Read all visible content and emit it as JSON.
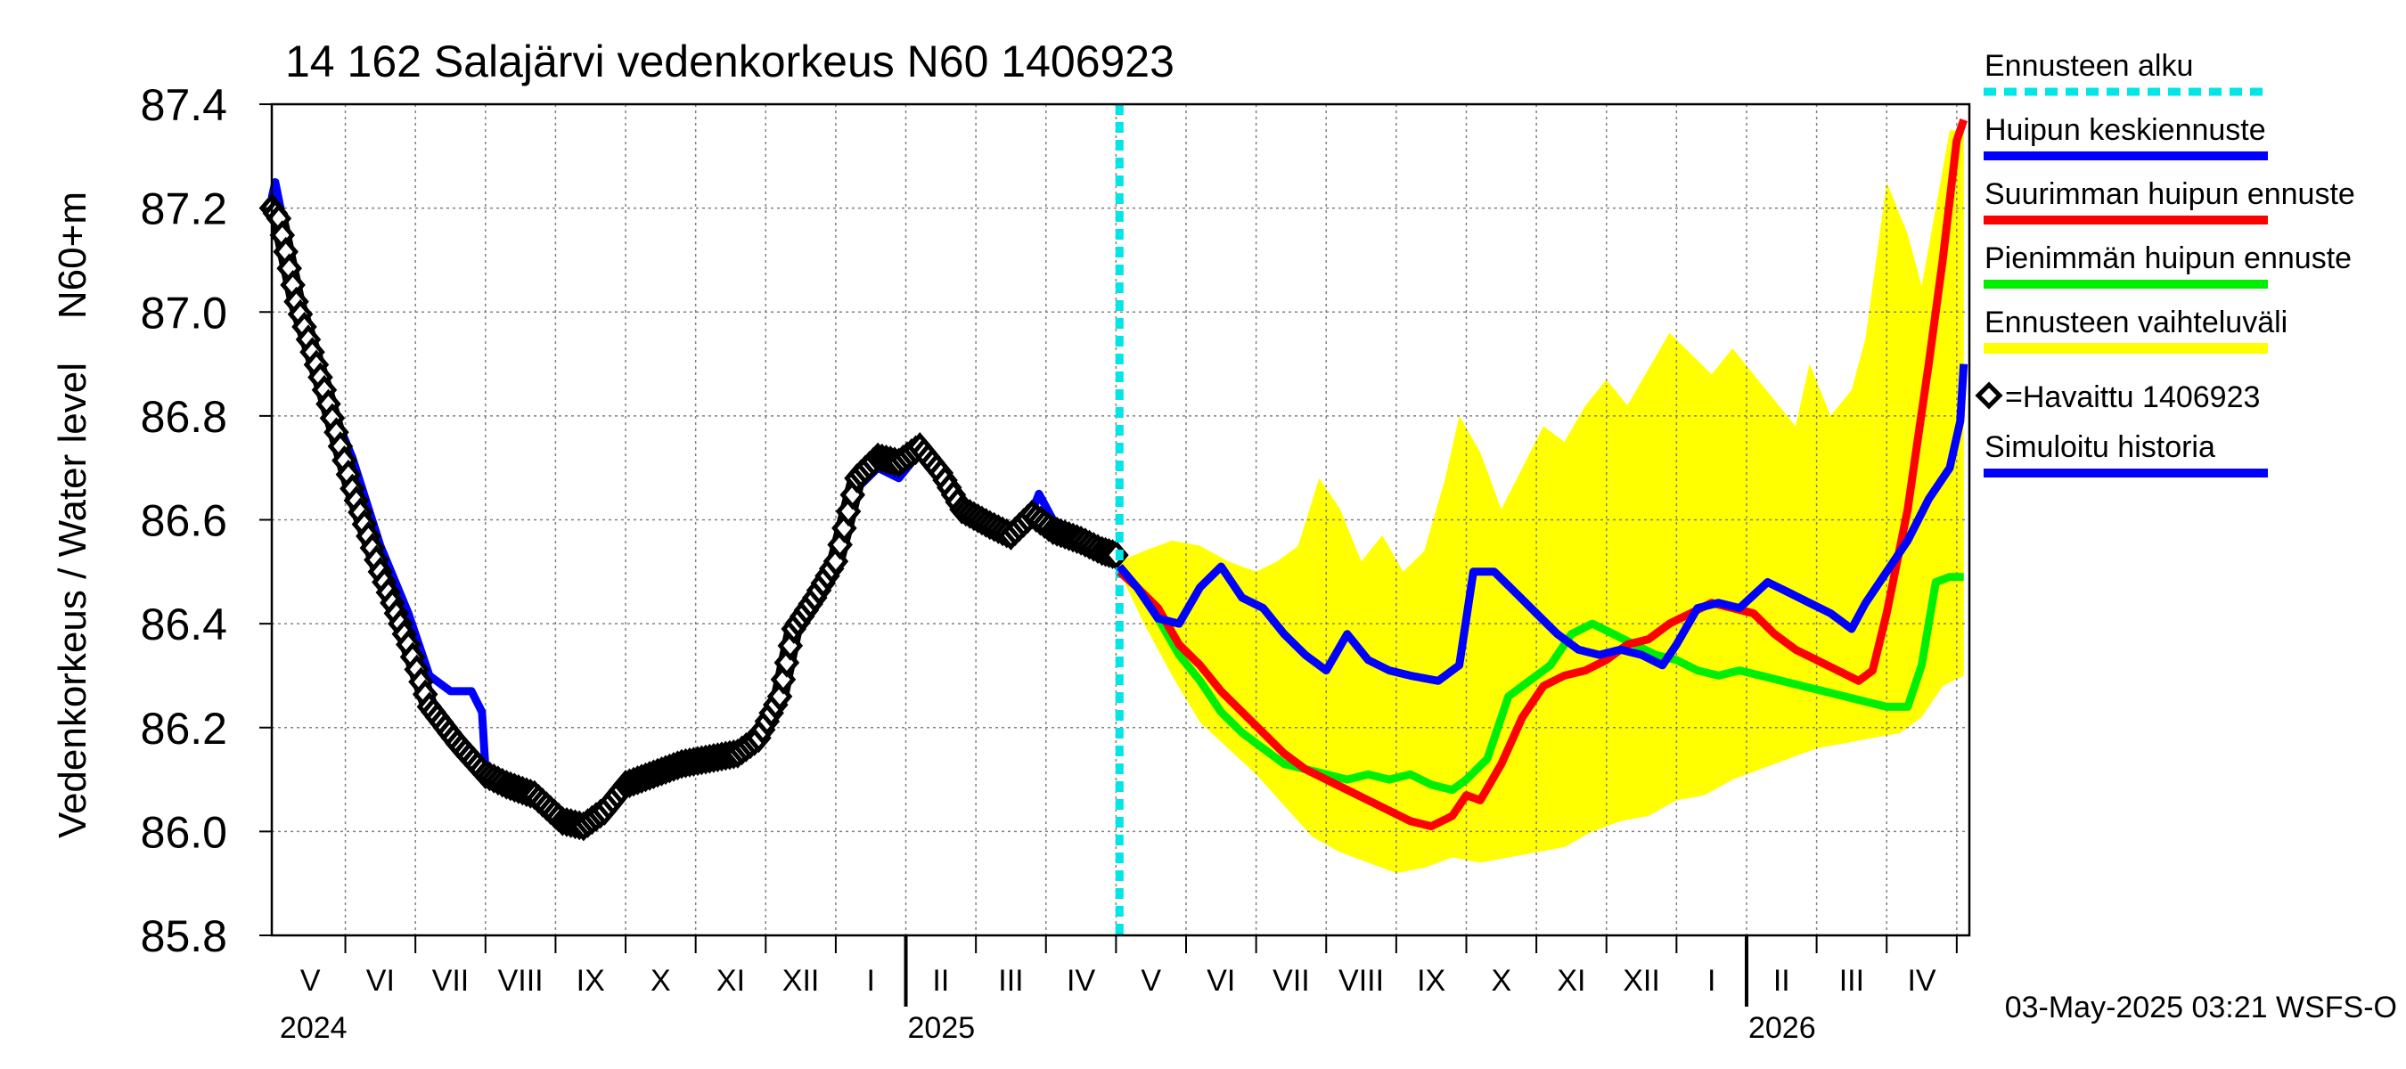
{
  "chart_data": {
    "type": "line",
    "title": "14 162 Salajärvi vedenkorkeus N60 1406923",
    "ylabel": "Vedenkorkeus / Water level    N60+m",
    "ylim": [
      85.8,
      87.4
    ],
    "yticks": [
      "85.8",
      "86.0",
      "86.2",
      "86.4",
      "86.6",
      "86.8",
      "87.0",
      "87.2",
      "87.4"
    ],
    "x_start_month": "2024-04",
    "x_month_count": 25,
    "month_labels": [
      "V",
      "VI",
      "VII",
      "VIII",
      "IX",
      "X",
      "XI",
      "XII",
      "I",
      "II",
      "III",
      "IV",
      "V",
      "VI",
      "VII",
      "VIII",
      "IX",
      "X",
      "XI",
      "XII",
      "I",
      "II",
      "III",
      "IV"
    ],
    "year_labels": [
      "2024",
      "2025",
      "2026"
    ],
    "forecast_start_month": 12.05,
    "footer": "03-May-2025 03:21 WSFS-O",
    "legend": [
      {
        "label": "Ennusteen alku",
        "color": "#00e5e5",
        "style": "dashed"
      },
      {
        "label": "Huipun keskiennuste",
        "color": "#0000ff",
        "style": "line"
      },
      {
        "label": "Suurimman huipun ennuste",
        "color": "#ff0000",
        "style": "line"
      },
      {
        "label": "Pienimmän huipun ennuste",
        "color": "#00ee00",
        "style": "line"
      },
      {
        "label": "Ennusteen vaihteluväli",
        "color": "#ffff00",
        "style": "band"
      },
      {
        "label": "=Havaittu 1406923",
        "color": "#000000",
        "style": "marker"
      },
      {
        "label": "Simuloitu historia",
        "color": "#0000ff",
        "style": "line"
      }
    ],
    "series": [
      {
        "name": "Simuloitu historia",
        "color": "#0000ff",
        "points": [
          [
            -0.05,
            87.22
          ],
          [
            0.0,
            87.25
          ],
          [
            0.3,
            87.05
          ],
          [
            0.7,
            86.85
          ],
          [
            1.1,
            86.72
          ],
          [
            1.5,
            86.55
          ],
          [
            1.9,
            86.42
          ],
          [
            2.2,
            86.3
          ],
          [
            2.5,
            86.27
          ],
          [
            2.8,
            86.27
          ],
          [
            2.95,
            86.23
          ],
          [
            3.0,
            86.12
          ],
          [
            3.3,
            86.09
          ],
          [
            3.7,
            86.07
          ],
          [
            4.1,
            86.03
          ],
          [
            4.4,
            86.02
          ],
          [
            4.7,
            86.03
          ],
          [
            5.0,
            86.08
          ],
          [
            5.4,
            86.11
          ],
          [
            5.8,
            86.13
          ],
          [
            6.2,
            86.14
          ],
          [
            6.6,
            86.16
          ],
          [
            6.9,
            86.18
          ],
          [
            7.2,
            86.25
          ],
          [
            7.4,
            86.38
          ],
          [
            7.7,
            86.45
          ],
          [
            8.0,
            86.52
          ],
          [
            8.3,
            86.66
          ],
          [
            8.6,
            86.7
          ],
          [
            8.9,
            86.68
          ],
          [
            9.2,
            86.73
          ],
          [
            9.4,
            86.72
          ],
          [
            9.6,
            86.68
          ],
          [
            9.8,
            86.62
          ],
          [
            10.2,
            86.59
          ],
          [
            10.5,
            86.57
          ],
          [
            10.7,
            86.58
          ],
          [
            10.9,
            86.65
          ],
          [
            11.1,
            86.6
          ],
          [
            11.5,
            86.57
          ],
          [
            11.8,
            86.55
          ],
          [
            12.05,
            86.53
          ]
        ]
      },
      {
        "name": "Havaittu 1406923",
        "color": "#000000",
        "points": [
          [
            -0.05,
            87.2
          ],
          [
            0.05,
            87.18
          ],
          [
            0.3,
            87.02
          ],
          [
            0.7,
            86.85
          ],
          [
            1.1,
            86.66
          ],
          [
            1.5,
            86.5
          ],
          [
            1.9,
            86.36
          ],
          [
            2.2,
            86.24
          ],
          [
            2.6,
            86.17
          ],
          [
            3.0,
            86.11
          ],
          [
            3.3,
            86.09
          ],
          [
            3.7,
            86.07
          ],
          [
            4.1,
            86.02
          ],
          [
            4.4,
            86.01
          ],
          [
            4.7,
            86.04
          ],
          [
            5.0,
            86.09
          ],
          [
            5.4,
            86.11
          ],
          [
            5.8,
            86.13
          ],
          [
            6.2,
            86.14
          ],
          [
            6.6,
            86.15
          ],
          [
            6.9,
            86.18
          ],
          [
            7.2,
            86.26
          ],
          [
            7.4,
            86.39
          ],
          [
            7.7,
            86.45
          ],
          [
            8.0,
            86.52
          ],
          [
            8.3,
            86.68
          ],
          [
            8.6,
            86.72
          ],
          [
            8.9,
            86.71
          ],
          [
            9.2,
            86.74
          ],
          [
            9.5,
            86.69
          ],
          [
            9.8,
            86.62
          ],
          [
            10.2,
            86.59
          ],
          [
            10.5,
            86.57
          ],
          [
            10.8,
            86.61
          ],
          [
            11.1,
            86.58
          ],
          [
            11.5,
            86.56
          ],
          [
            11.8,
            86.54
          ],
          [
            12.05,
            86.53
          ]
        ]
      },
      {
        "name": "Huipun keskiennuste",
        "color": "#0000ff",
        "points": [
          [
            12.05,
            86.51
          ],
          [
            12.3,
            86.47
          ],
          [
            12.6,
            86.41
          ],
          [
            12.9,
            86.4
          ],
          [
            13.2,
            86.47
          ],
          [
            13.5,
            86.51
          ],
          [
            13.8,
            86.45
          ],
          [
            14.1,
            86.43
          ],
          [
            14.4,
            86.38
          ],
          [
            14.7,
            86.34
          ],
          [
            15.0,
            86.31
          ],
          [
            15.3,
            86.38
          ],
          [
            15.6,
            86.33
          ],
          [
            15.9,
            86.31
          ],
          [
            16.2,
            86.3
          ],
          [
            16.6,
            86.29
          ],
          [
            16.9,
            86.32
          ],
          [
            17.1,
            86.5
          ],
          [
            17.4,
            86.5
          ],
          [
            17.7,
            86.46
          ],
          [
            18.0,
            86.42
          ],
          [
            18.3,
            86.38
          ],
          [
            18.6,
            86.35
          ],
          [
            18.9,
            86.34
          ],
          [
            19.2,
            86.35
          ],
          [
            19.5,
            86.34
          ],
          [
            19.8,
            86.32
          ],
          [
            20.0,
            86.36
          ],
          [
            20.3,
            86.43
          ],
          [
            20.6,
            86.44
          ],
          [
            20.9,
            86.43
          ],
          [
            21.3,
            86.48
          ],
          [
            21.6,
            86.46
          ],
          [
            21.9,
            86.44
          ],
          [
            22.2,
            86.42
          ],
          [
            22.5,
            86.39
          ],
          [
            22.7,
            86.44
          ],
          [
            23.0,
            86.5
          ],
          [
            23.3,
            86.56
          ],
          [
            23.6,
            86.64
          ],
          [
            23.9,
            86.7
          ],
          [
            24.05,
            86.79
          ],
          [
            24.1,
            86.9
          ]
        ]
      },
      {
        "name": "Suurimman huipun ennuste",
        "color": "#ff0000",
        "points": [
          [
            12.05,
            86.5
          ],
          [
            12.3,
            86.47
          ],
          [
            12.6,
            86.43
          ],
          [
            12.9,
            86.36
          ],
          [
            13.2,
            86.32
          ],
          [
            13.5,
            86.27
          ],
          [
            13.8,
            86.23
          ],
          [
            14.1,
            86.19
          ],
          [
            14.4,
            86.15
          ],
          [
            14.7,
            86.12
          ],
          [
            15.0,
            86.1
          ],
          [
            15.3,
            86.08
          ],
          [
            15.6,
            86.06
          ],
          [
            15.9,
            86.04
          ],
          [
            16.2,
            86.02
          ],
          [
            16.5,
            86.01
          ],
          [
            16.8,
            86.03
          ],
          [
            17.0,
            86.07
          ],
          [
            17.2,
            86.06
          ],
          [
            17.5,
            86.13
          ],
          [
            17.8,
            86.22
          ],
          [
            18.1,
            86.28
          ],
          [
            18.4,
            86.3
          ],
          [
            18.7,
            86.31
          ],
          [
            19.0,
            86.33
          ],
          [
            19.3,
            86.36
          ],
          [
            19.6,
            86.37
          ],
          [
            19.9,
            86.4
          ],
          [
            20.2,
            86.42
          ],
          [
            20.5,
            86.44
          ],
          [
            20.8,
            86.43
          ],
          [
            21.1,
            86.42
          ],
          [
            21.4,
            86.38
          ],
          [
            21.7,
            86.35
          ],
          [
            22.0,
            86.33
          ],
          [
            22.3,
            86.31
          ],
          [
            22.6,
            86.29
          ],
          [
            22.8,
            86.31
          ],
          [
            23.0,
            86.42
          ],
          [
            23.3,
            86.62
          ],
          [
            23.6,
            86.9
          ],
          [
            23.8,
            87.1
          ],
          [
            24.0,
            87.33
          ],
          [
            24.1,
            87.37
          ]
        ]
      },
      {
        "name": "Pienimmän huipun ennuste",
        "color": "#00ee00",
        "points": [
          [
            12.05,
            86.51
          ],
          [
            12.3,
            86.47
          ],
          [
            12.6,
            86.41
          ],
          [
            12.9,
            86.34
          ],
          [
            13.2,
            86.29
          ],
          [
            13.5,
            86.23
          ],
          [
            13.8,
            86.19
          ],
          [
            14.1,
            86.16
          ],
          [
            14.4,
            86.13
          ],
          [
            14.7,
            86.12
          ],
          [
            15.0,
            86.11
          ],
          [
            15.3,
            86.1
          ],
          [
            15.6,
            86.11
          ],
          [
            15.9,
            86.1
          ],
          [
            16.2,
            86.11
          ],
          [
            16.5,
            86.09
          ],
          [
            16.8,
            86.08
          ],
          [
            17.0,
            86.1
          ],
          [
            17.3,
            86.14
          ],
          [
            17.6,
            86.26
          ],
          [
            17.9,
            86.29
          ],
          [
            18.2,
            86.32
          ],
          [
            18.5,
            86.38
          ],
          [
            18.8,
            86.4
          ],
          [
            19.1,
            86.38
          ],
          [
            19.4,
            86.36
          ],
          [
            19.7,
            86.34
          ],
          [
            20.0,
            86.33
          ],
          [
            20.3,
            86.31
          ],
          [
            20.6,
            86.3
          ],
          [
            20.9,
            86.31
          ],
          [
            21.2,
            86.3
          ],
          [
            21.5,
            86.29
          ],
          [
            21.8,
            86.28
          ],
          [
            22.1,
            86.27
          ],
          [
            22.4,
            86.26
          ],
          [
            22.7,
            86.25
          ],
          [
            23.0,
            86.24
          ],
          [
            23.3,
            86.24
          ],
          [
            23.5,
            86.32
          ],
          [
            23.7,
            86.48
          ],
          [
            23.9,
            86.49
          ],
          [
            24.1,
            86.49
          ]
        ]
      }
    ],
    "band": {
      "name": "Ennusteen vaihteluväli",
      "color": "#ffff00",
      "upper": [
        [
          12.05,
          86.52
        ],
        [
          12.4,
          86.54
        ],
        [
          12.8,
          86.56
        ],
        [
          13.2,
          86.55
        ],
        [
          13.6,
          86.52
        ],
        [
          14.0,
          86.5
        ],
        [
          14.3,
          86.52
        ],
        [
          14.6,
          86.55
        ],
        [
          14.9,
          86.68
        ],
        [
          15.2,
          86.62
        ],
        [
          15.5,
          86.52
        ],
        [
          15.8,
          86.57
        ],
        [
          16.1,
          86.5
        ],
        [
          16.4,
          86.54
        ],
        [
          16.7,
          86.68
        ],
        [
          16.9,
          86.8
        ],
        [
          17.2,
          86.73
        ],
        [
          17.5,
          86.62
        ],
        [
          17.8,
          86.7
        ],
        [
          18.1,
          86.78
        ],
        [
          18.4,
          86.75
        ],
        [
          18.7,
          86.82
        ],
        [
          19.0,
          86.87
        ],
        [
          19.3,
          86.82
        ],
        [
          19.6,
          86.89
        ],
        [
          19.9,
          86.96
        ],
        [
          20.2,
          86.92
        ],
        [
          20.5,
          86.88
        ],
        [
          20.8,
          86.93
        ],
        [
          21.1,
          86.88
        ],
        [
          21.4,
          86.83
        ],
        [
          21.7,
          86.78
        ],
        [
          21.9,
          86.9
        ],
        [
          22.2,
          86.8
        ],
        [
          22.5,
          86.85
        ],
        [
          22.7,
          86.95
        ],
        [
          23.0,
          87.25
        ],
        [
          23.3,
          87.15
        ],
        [
          23.5,
          87.05
        ],
        [
          23.7,
          87.2
        ],
        [
          23.9,
          87.35
        ],
        [
          24.1,
          87.35
        ]
      ],
      "lower": [
        [
          24.1,
          86.3
        ],
        [
          23.8,
          86.28
        ],
        [
          23.5,
          86.22
        ],
        [
          23.2,
          86.19
        ],
        [
          22.8,
          86.18
        ],
        [
          22.4,
          86.17
        ],
        [
          22.0,
          86.16
        ],
        [
          21.6,
          86.14
        ],
        [
          21.2,
          86.12
        ],
        [
          20.8,
          86.1
        ],
        [
          20.4,
          86.07
        ],
        [
          20.0,
          86.06
        ],
        [
          19.6,
          86.03
        ],
        [
          19.2,
          86.02
        ],
        [
          18.8,
          86.0
        ],
        [
          18.4,
          85.97
        ],
        [
          18.0,
          85.96
        ],
        [
          17.6,
          85.95
        ],
        [
          17.2,
          85.94
        ],
        [
          16.8,
          85.95
        ],
        [
          16.4,
          85.93
        ],
        [
          16.0,
          85.92
        ],
        [
          15.6,
          85.94
        ],
        [
          15.2,
          85.96
        ],
        [
          14.8,
          85.99
        ],
        [
          14.4,
          86.05
        ],
        [
          14.0,
          86.11
        ],
        [
          13.6,
          86.16
        ],
        [
          13.2,
          86.21
        ],
        [
          12.8,
          86.3
        ],
        [
          12.4,
          86.4
        ],
        [
          12.05,
          86.5
        ]
      ]
    }
  }
}
